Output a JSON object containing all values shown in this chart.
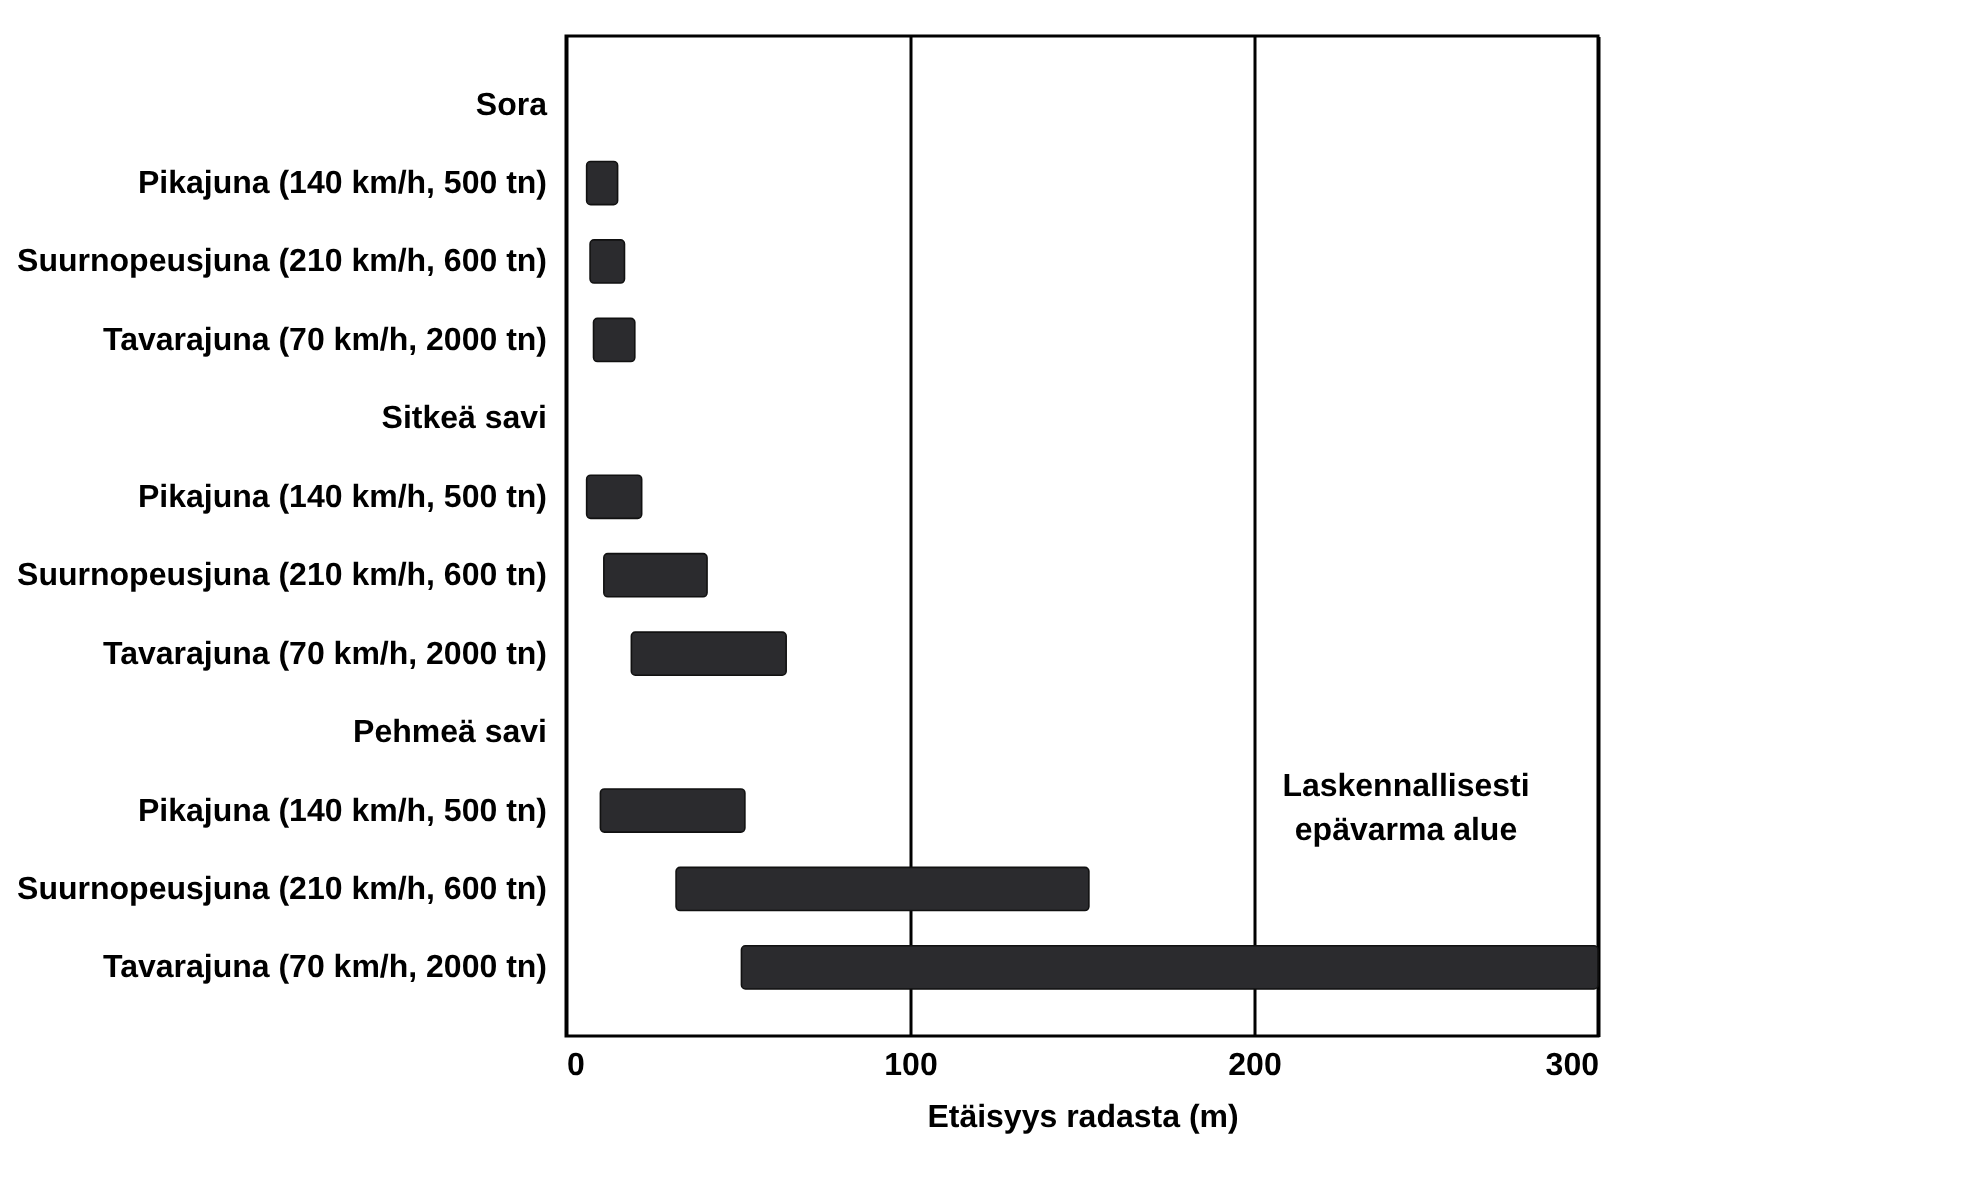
{
  "chart_data": {
    "type": "bar",
    "orientation": "horizontal",
    "xlabel": "Etäisyys radasta (m)",
    "categories": [
      "Sora",
      "Pikajuna (140 km/h, 500 tn)",
      "Suurnopeusjuna (210 km/h, 600 tn)",
      "Tavarajuna  (70 km/h, 2000 tn)",
      "Sitkeä savi",
      "Pikajuna (140 km/h, 500 tn)",
      "Suurnopeusjuna (210 km/h, 600 tn)",
      "Tavarajuna  (70 km/h, 2000 tn)",
      "Pehmeä savi",
      "Pikajuna (140 km/h, 500 tn)",
      "Suurnopeusjuna (210 km/h, 600 tn)",
      "Tavarajuna  (70 km/h, 2000 tn)"
    ],
    "base": [
      null,
      6,
      7,
      8,
      null,
      6,
      11,
      19,
      null,
      10,
      32,
      51
    ],
    "values": [
      null,
      9,
      10,
      12,
      null,
      16,
      30,
      45,
      null,
      42,
      120,
      249
    ],
    "color": "#2b2b2e",
    "xlim": [
      0,
      300
    ],
    "xticks": [
      0,
      100,
      200,
      300
    ],
    "grid": "x",
    "annotations": [
      "Laskennallisesti epävarma alue"
    ]
  }
}
